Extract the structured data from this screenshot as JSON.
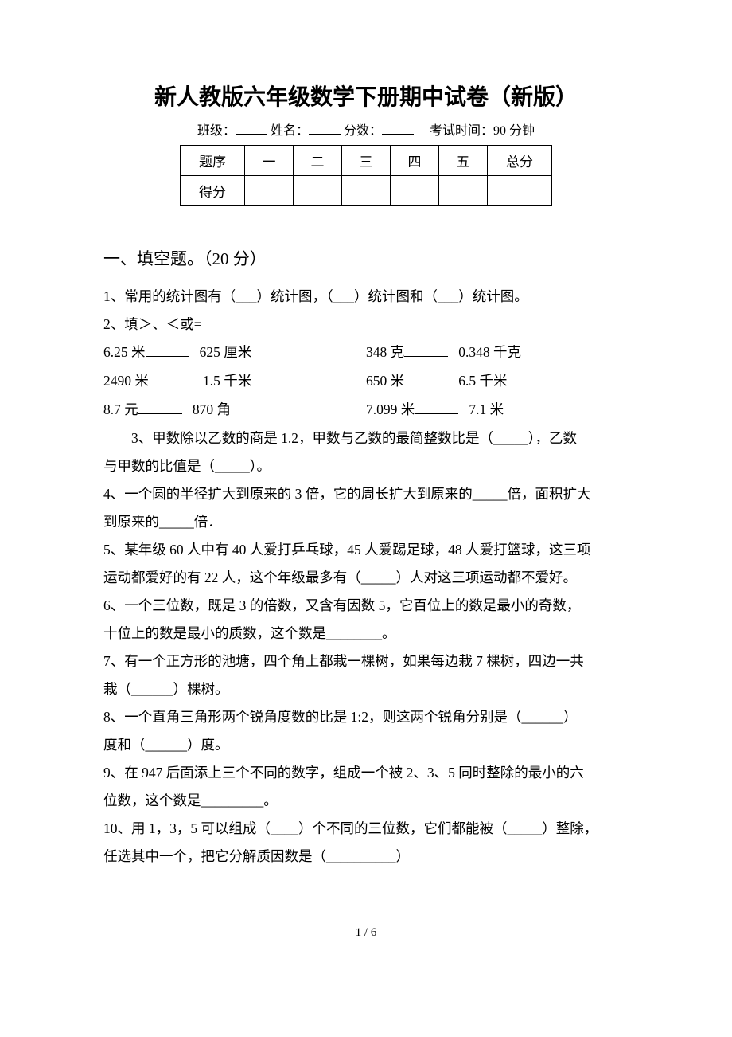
{
  "title": "新人教版六年级数学下册期中试卷（新版）",
  "info": {
    "class_label": "班级：",
    "name_label": "姓名：",
    "score_label": "分数：",
    "time_label": "考试时间：90 分钟"
  },
  "score_table": {
    "header": [
      "题序",
      "一",
      "二",
      "三",
      "四",
      "五",
      "总分"
    ],
    "row_label": "得分"
  },
  "section1": {
    "heading": "一、填空题。（20 分）"
  },
  "q1": "1、常用的统计图有（___）统计图，（___）统计图和（___）统计图。",
  "q2": {
    "text": "2、填＞、＜或=",
    "r1a": "6.25 米",
    "r1b": "625 厘米",
    "r1c": "348 克",
    "r1d": "0.348 千克",
    "r2a": "2490 米",
    "r2b": "1.5 千米",
    "r2c": "650 米",
    "r2d": "6.5 千米",
    "r3a": "8.7 元",
    "r3b": "870 角",
    "r3c": "7.099 米",
    "r3d": "7.1 米"
  },
  "q3_a": "3、甲数除以乙数的商是 1.2，甲数与乙数的最简整数比是（_____），乙数",
  "q3_b": "与甲数的比值是（_____）。",
  "q4_a": "4、一个圆的半径扩大到原来的 3 倍，它的周长扩大到原来的_____倍，面积扩大",
  "q4_b": "到原来的_____倍．",
  "q5_a": "5、某年级 60 人中有 40 人爱打乒乓球，45 人爱踢足球，48 人爱打篮球，这三项",
  "q5_b": "运动都爱好的有 22 人，这个年级最多有（_____）人对这三项运动都不爱好。",
  "q6_a": "6、一个三位数，既是 3 的倍数，又含有因数 5，它百位上的数是最小的奇数，",
  "q6_b": "十位上的数是最小的质数，这个数是________。",
  "q7_a": "7、有一个正方形的池塘，四个角上都栽一棵树，如果每边栽 7 棵树，四边一共",
  "q7_b": "栽（______）棵树。",
  "q8_a": "8、一个直角三角形两个锐角度数的比是 1:2，则这两个锐角分别是（______）",
  "q8_b": "度和（______）度。",
  "q9_a": "9、在 947 后面添上三个不同的数字，组成一个被 2、3、5 同时整除的最小的六",
  "q9_b": "位数，这个数是_________。",
  "q10_a": "10、用 1，3，5 可以组成（____）个不同的三位数，它们都能被（_____）整除，",
  "q10_b": "任选其中一个，把它分解质因数是（__________）",
  "footer": "1 / 6"
}
